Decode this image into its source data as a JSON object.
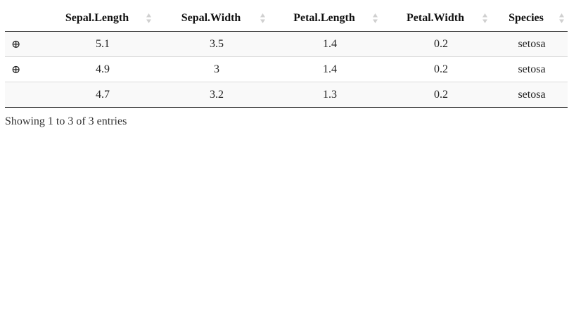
{
  "table": {
    "columns": [
      {
        "label": ""
      },
      {
        "label": "Sepal.Length"
      },
      {
        "label": "Sepal.Width"
      },
      {
        "label": "Petal.Length"
      },
      {
        "label": "Petal.Width"
      },
      {
        "label": "Species"
      }
    ],
    "rows": [
      {
        "expand": "⊕",
        "cells": [
          "5.1",
          "3.5",
          "1.4",
          "0.2",
          "setosa"
        ]
      },
      {
        "expand": "⊕",
        "cells": [
          "4.9",
          "3",
          "1.4",
          "0.2",
          "setosa"
        ]
      },
      {
        "expand": "",
        "cells": [
          "4.7",
          "3.2",
          "1.3",
          "0.2",
          "setosa"
        ]
      }
    ]
  },
  "info": {
    "text": "Showing 1 to 3 of 3 entries"
  },
  "icons": {
    "sort": "sort-both-icon",
    "expand": "circled-plus-icon"
  },
  "colors": {
    "header_border": "#111111",
    "row_stripe": "#f9f9f9",
    "sort_arrows": "#d0d0d0"
  }
}
